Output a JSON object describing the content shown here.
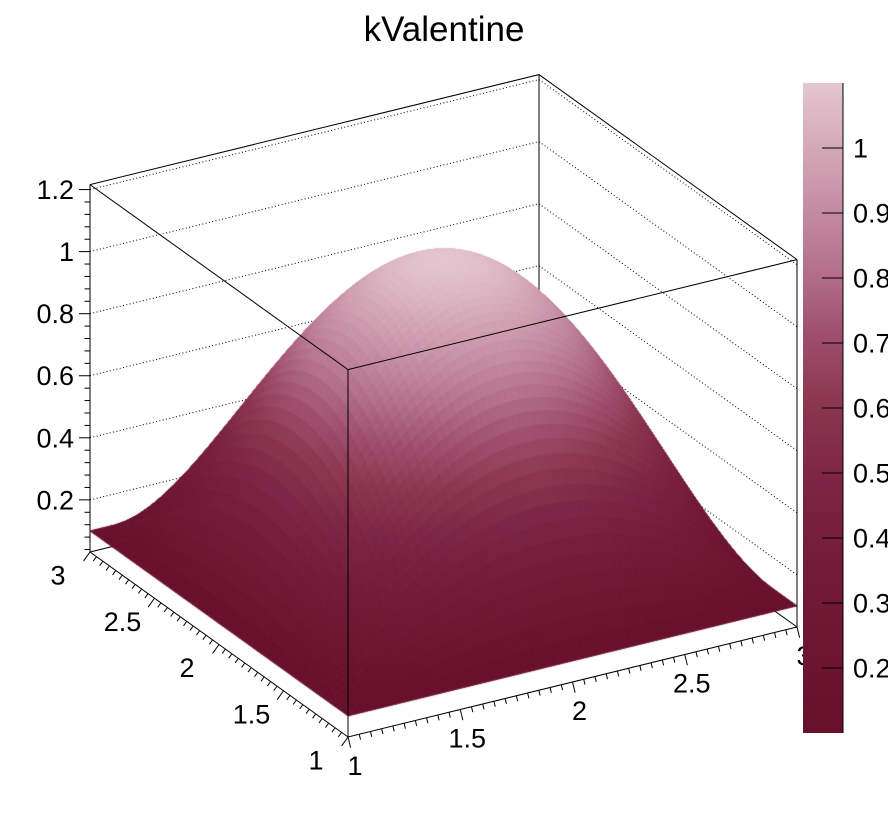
{
  "chart_data": {
    "type": "surface",
    "title": "kValentine",
    "palette_name": "kValentine",
    "formula": "z = 0.1 + (1 - (x-2)^2) * (1 - (y-2)^2)",
    "formula_params": {
      "z0": 0.1,
      "cx": 2,
      "cy": 2
    },
    "x_range": [
      1,
      3
    ],
    "y_range": [
      1,
      3
    ],
    "z_data_range": [
      0.1,
      1.1
    ],
    "z_axis_range": [
      0.032,
      1.216
    ],
    "grid": "dotted z-level lines on back walls",
    "legend_position": "right palette bar",
    "x_ticks": [
      "1",
      "1.5",
      "2",
      "2.5",
      "3"
    ],
    "x_tick_values": [
      1,
      1.5,
      2,
      2.5,
      3
    ],
    "y_ticks": [
      "3",
      "2.5",
      "2",
      "1.5",
      "1"
    ],
    "y_tick_values": [
      3,
      2.5,
      2,
      1.5,
      1
    ],
    "z_ticks": [
      "0.2",
      "0.4",
      "0.6",
      "0.8",
      "1",
      "1.2"
    ],
    "z_tick_values": [
      0.2,
      0.4,
      0.6,
      0.8,
      1.0,
      1.2
    ],
    "palette_ticks": [
      "0.2",
      "0.3",
      "0.4",
      "0.5",
      "0.6",
      "0.7",
      "0.8",
      "0.9",
      "1"
    ],
    "palette_tick_values": [
      0.2,
      0.3,
      0.4,
      0.5,
      0.6,
      0.7,
      0.8,
      0.9,
      1.0
    ],
    "palette_stops": [
      {
        "t": 0.0,
        "color": "#68102a"
      },
      {
        "t": 0.25,
        "color": "#731a38"
      },
      {
        "t": 0.4,
        "color": "#7e2645"
      },
      {
        "t": 0.52,
        "color": "#8d3951"
      },
      {
        "t": 0.62,
        "color": "#a05170"
      },
      {
        "t": 0.72,
        "color": "#b5738c"
      },
      {
        "t": 0.82,
        "color": "#c791a5"
      },
      {
        "t": 0.9,
        "color": "#d4a8b7"
      },
      {
        "t": 1.0,
        "color": "#e4c6d0"
      }
    ],
    "frame_color": "#000000",
    "background_color": "#ffffff",
    "sample_grid": {
      "x": [
        1,
        1.5,
        2,
        2.5,
        3
      ],
      "y": [
        1,
        1.5,
        2,
        2.5,
        3
      ],
      "z": [
        [
          0.1,
          0.1,
          0.1,
          0.1,
          0.1
        ],
        [
          0.1,
          0.6625,
          0.85,
          0.6625,
          0.1
        ],
        [
          0.1,
          0.85,
          1.1,
          0.85,
          0.1
        ],
        [
          0.1,
          0.6625,
          0.85,
          0.6625,
          0.1
        ],
        [
          0.1,
          0.1,
          0.1,
          0.1,
          0.1
        ]
      ]
    }
  }
}
